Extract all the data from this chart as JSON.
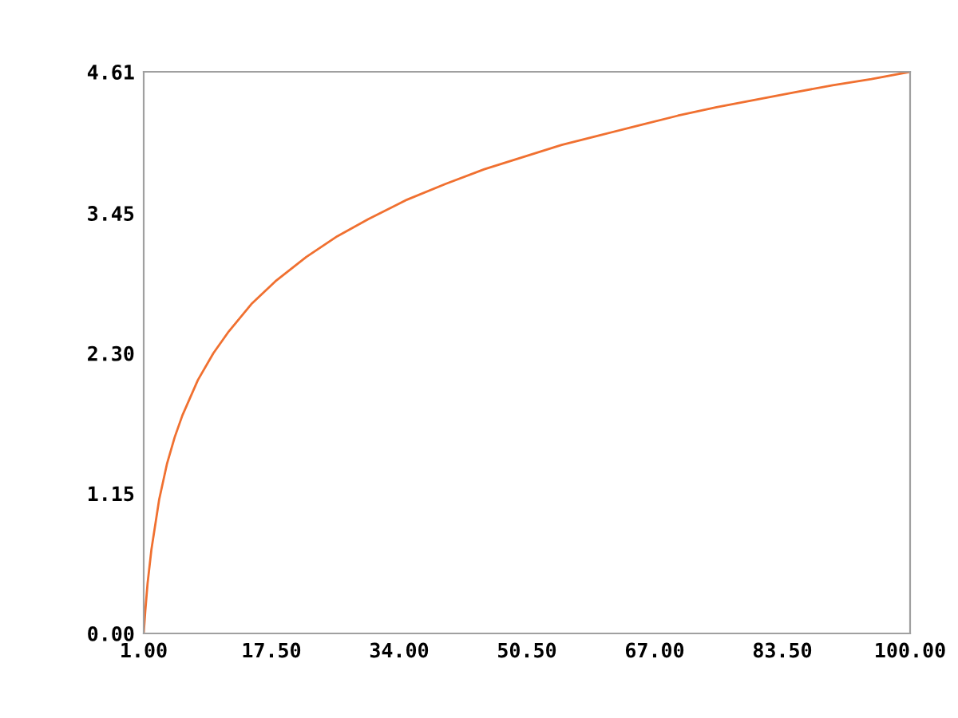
{
  "chart_data": {
    "type": "line",
    "color": "#f07030",
    "x": [
      1,
      1.2,
      1.5,
      2,
      3,
      4,
      5,
      6,
      8,
      10,
      12,
      15,
      18,
      22,
      26,
      30,
      35,
      40,
      45,
      50,
      55,
      60,
      65,
      70,
      75,
      80,
      85,
      90,
      95,
      100
    ],
    "values": [
      0,
      0.18,
      0.41,
      0.69,
      1.1,
      1.39,
      1.61,
      1.79,
      2.08,
      2.3,
      2.48,
      2.71,
      2.89,
      3.09,
      3.26,
      3.4,
      3.56,
      3.69,
      3.81,
      3.91,
      4.01,
      4.09,
      4.17,
      4.25,
      4.32,
      4.38,
      4.44,
      4.5,
      4.55,
      4.61
    ],
    "xlim": [
      1,
      100
    ],
    "ylim": [
      0,
      4.61
    ],
    "xticks": [
      {
        "value": 1,
        "label": "1.00"
      },
      {
        "value": 17.5,
        "label": "17.50"
      },
      {
        "value": 34,
        "label": "34.00"
      },
      {
        "value": 50.5,
        "label": "50.50"
      },
      {
        "value": 67,
        "label": "67.00"
      },
      {
        "value": 83.5,
        "label": "83.50"
      },
      {
        "value": 100,
        "label": "100.00"
      }
    ],
    "yticks": [
      {
        "value": 0,
        "label": "0.00"
      },
      {
        "value": 1.15,
        "label": "1.15"
      },
      {
        "value": 2.3,
        "label": "2.30"
      },
      {
        "value": 3.45,
        "label": "3.45"
      },
      {
        "value": 4.61,
        "label": "4.61"
      }
    ],
    "grid": false,
    "legend": false,
    "marker": "none",
    "line_style": "solid"
  }
}
